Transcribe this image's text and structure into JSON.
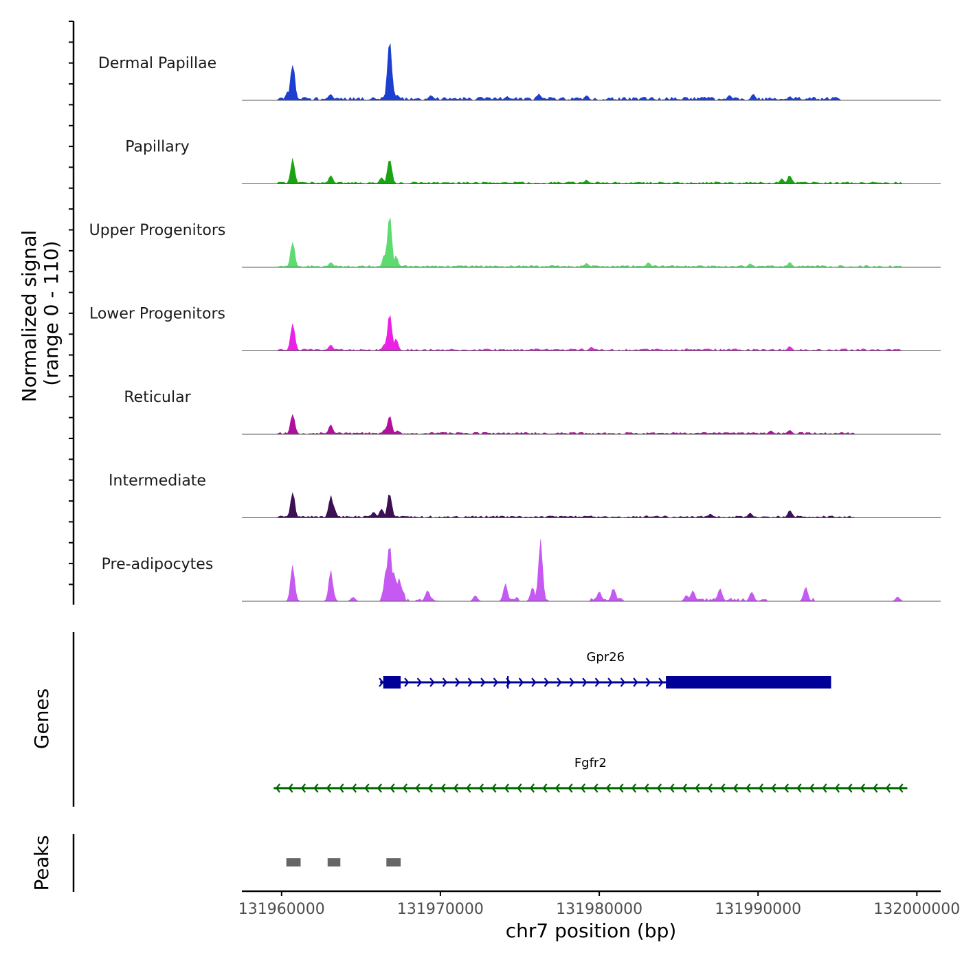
{
  "chart_data": {
    "type": "area",
    "ylabel_line1": "Normalized signal",
    "ylabel_line2": "(range 0 - 110)",
    "ylim": [
      0,
      110
    ],
    "xlabel": "chr7 position (bp)",
    "xlim": [
      131957500,
      132001500
    ],
    "xticks": [
      131960000,
      131970000,
      131980000,
      131990000,
      132000000
    ],
    "xtick_labels": [
      "131960000",
      "131970000",
      "131980000",
      "131990000",
      "132000000"
    ],
    "coverage_tracks": [
      {
        "name": "Dermal Papillae",
        "color": "#1c3fd1",
        "peaks": [
          [
            131960700,
            62
          ],
          [
            131960400,
            15
          ],
          [
            131963100,
            10
          ],
          [
            131966600,
            8
          ],
          [
            131966800,
            103
          ],
          [
            131967000,
            20
          ],
          [
            131967300,
            8
          ],
          [
            131969400,
            8
          ],
          [
            131974200,
            6
          ],
          [
            131976200,
            10
          ],
          [
            131979200,
            8
          ],
          [
            131988200,
            8
          ],
          [
            131989700,
            10
          ],
          [
            131992000,
            6
          ]
        ],
        "background": [
          [
            131959800,
            131995200,
            5
          ]
        ]
      },
      {
        "name": "Papillary",
        "color": "#1aa312",
        "peaks": [
          [
            131960700,
            40
          ],
          [
            131963100,
            13
          ],
          [
            131966300,
            10
          ],
          [
            131966800,
            42
          ],
          [
            131979200,
            6
          ],
          [
            131991500,
            8
          ],
          [
            131992000,
            14
          ]
        ],
        "background": [
          [
            131959800,
            131999000,
            3
          ]
        ]
      },
      {
        "name": "Upper Progenitors",
        "color": "#5edb6f",
        "peaks": [
          [
            131960700,
            42
          ],
          [
            131963100,
            8
          ],
          [
            131966800,
            88
          ],
          [
            131966500,
            22
          ],
          [
            131967200,
            18
          ],
          [
            131979200,
            7
          ],
          [
            131983100,
            8
          ],
          [
            131989500,
            6
          ],
          [
            131992000,
            8
          ]
        ],
        "background": [
          [
            131959800,
            131999000,
            3
          ]
        ]
      },
      {
        "name": "Lower Progenitors",
        "color": "#ea22e6",
        "peaks": [
          [
            131960700,
            45
          ],
          [
            131963100,
            10
          ],
          [
            131966800,
            62
          ],
          [
            131966500,
            12
          ],
          [
            131967200,
            20
          ],
          [
            131979500,
            6
          ],
          [
            131992000,
            7
          ]
        ],
        "background": [
          [
            131959800,
            131999000,
            3
          ]
        ]
      },
      {
        "name": "Reticular",
        "color": "#b0109b",
        "peaks": [
          [
            131960700,
            33
          ],
          [
            131963100,
            15
          ],
          [
            131966800,
            31
          ],
          [
            131966500,
            8
          ],
          [
            131967300,
            6
          ],
          [
            131990800,
            6
          ],
          [
            131992000,
            7
          ]
        ],
        "background": [
          [
            131959800,
            131996000,
            3
          ]
        ]
      },
      {
        "name": "Intermediate",
        "color": "#3d0f54",
        "peaks": [
          [
            131960700,
            40
          ],
          [
            131963100,
            36
          ],
          [
            131963300,
            16
          ],
          [
            131965800,
            10
          ],
          [
            131966800,
            42
          ],
          [
            131966300,
            14
          ],
          [
            131989500,
            8
          ],
          [
            131992000,
            12
          ],
          [
            131987000,
            6
          ]
        ],
        "background": [
          [
            131959800,
            131996000,
            3
          ]
        ]
      },
      {
        "name": "Pre-adipocytes",
        "color": "#c659f2",
        "peaks": [
          [
            131960700,
            57
          ],
          [
            131963100,
            48
          ],
          [
            131966800,
            100
          ],
          [
            131966600,
            55
          ],
          [
            131967100,
            45
          ],
          [
            131967400,
            38
          ],
          [
            131974100,
            27
          ],
          [
            131975800,
            22
          ],
          [
            131976300,
            97
          ],
          [
            131980900,
            22
          ],
          [
            131980000,
            16
          ],
          [
            131985900,
            18
          ],
          [
            131987600,
            20
          ],
          [
            131989600,
            15
          ],
          [
            131993000,
            22
          ],
          [
            131998800,
            7
          ],
          [
            131969200,
            18
          ],
          [
            131964500,
            7
          ],
          [
            131972200,
            9
          ],
          [
            131985500,
            10
          ]
        ],
        "background": [
          [
            131960300,
            131961200,
            6
          ],
          [
            131962800,
            131963600,
            6
          ],
          [
            131966200,
            131968000,
            18
          ],
          [
            131968500,
            131970000,
            5
          ],
          [
            131974000,
            131975000,
            6
          ],
          [
            131976000,
            131976800,
            6
          ],
          [
            131979500,
            131981500,
            5
          ],
          [
            131985500,
            131990500,
            5
          ],
          [
            131992800,
            131993500,
            6
          ]
        ],
        "zero_gaps": [
          [
            131961300,
            131962700
          ],
          [
            131963700,
            131964200
          ],
          [
            131970300,
            131971800
          ],
          [
            131972500,
            131973800
          ],
          [
            131977000,
            131979200
          ],
          [
            131981800,
            131985300
          ],
          [
            131990800,
            131992600
          ],
          [
            131995000,
            131998500
          ]
        ]
      }
    ],
    "genes_label": "Genes",
    "genes": [
      {
        "name": "Gpr26",
        "color": "#000099",
        "strand": "+",
        "start": 131966200,
        "end": 131994600,
        "exons": [
          [
            131966400,
            131967500
          ],
          [
            131974200,
            131974300
          ],
          [
            131984200,
            131994600
          ]
        ]
      },
      {
        "name": "Fgfr2",
        "color": "#006400",
        "strand": "-",
        "start": 131959500,
        "end": 131999400,
        "exons": []
      }
    ],
    "peaks_label": "Peaks",
    "peak_regions": [
      [
        131960300,
        131961200
      ],
      [
        131962900,
        131963700
      ],
      [
        131966600,
        131967500
      ]
    ],
    "peak_color": "#666666"
  }
}
